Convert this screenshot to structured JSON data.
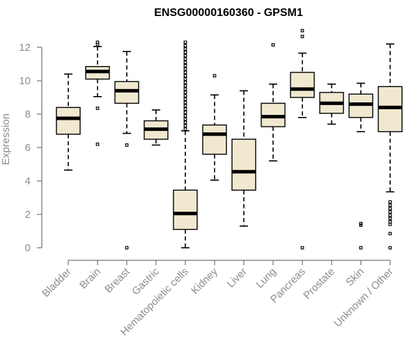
{
  "chart_data": {
    "type": "box",
    "title": "ENSG00000160360 - GPSM1",
    "xlabel": "",
    "ylabel": "Expression",
    "ylim": [
      0,
      12.4
    ],
    "yticks": [
      0,
      2,
      4,
      6,
      8,
      10,
      12
    ],
    "grid": false,
    "colors": {
      "box_fill": "#f0e8cf",
      "stroke": "#000000",
      "axis": "#8c8c8c"
    },
    "categories": [
      "Bladder",
      "Brain",
      "Breast",
      "Gastric",
      "Hematopoietic cells",
      "Kidney",
      "Liver",
      "Lung",
      "Pancreas",
      "Prostate",
      "Skin",
      "Unknown / Other"
    ],
    "boxes": [
      {
        "name": "Bladder",
        "whisker_low": 4.65,
        "q1": 6.8,
        "median": 7.75,
        "q3": 8.4,
        "whisker_high": 10.4,
        "outliers": []
      },
      {
        "name": "Brain",
        "whisker_low": 9.05,
        "q1": 10.1,
        "median": 10.55,
        "q3": 10.85,
        "whisker_high": 12.05,
        "outliers": [
          12.15,
          12.3,
          8.35,
          6.2
        ]
      },
      {
        "name": "Breast",
        "whisker_low": 6.85,
        "q1": 8.65,
        "median": 9.4,
        "q3": 9.95,
        "whisker_high": 11.75,
        "outliers": [
          6.15,
          0.0
        ]
      },
      {
        "name": "Gastric",
        "whisker_low": 6.15,
        "q1": 6.5,
        "median": 7.1,
        "q3": 7.6,
        "whisker_high": 8.25,
        "outliers": []
      },
      {
        "name": "Hematopoietic cells",
        "whisker_low": 0.0,
        "q1": 1.1,
        "median": 2.05,
        "q3": 3.45,
        "whisker_high": 7.0,
        "outliers": [
          7.1,
          7.3,
          7.5,
          7.7,
          7.9,
          8.1,
          8.3,
          8.5,
          8.7,
          8.9,
          9.1,
          9.3,
          9.5,
          9.7,
          9.9,
          10.1,
          10.3,
          10.5,
          10.7,
          10.9,
          11.1,
          11.3,
          11.5,
          11.7,
          11.9,
          12.1,
          12.3
        ]
      },
      {
        "name": "Kidney",
        "whisker_low": 4.05,
        "q1": 5.6,
        "median": 6.8,
        "q3": 7.35,
        "whisker_high": 9.15,
        "outliers": [
          10.3
        ]
      },
      {
        "name": "Liver",
        "whisker_low": 1.3,
        "q1": 3.45,
        "median": 4.55,
        "q3": 6.5,
        "whisker_high": 9.4,
        "outliers": []
      },
      {
        "name": "Lung",
        "whisker_low": 5.2,
        "q1": 7.25,
        "median": 7.85,
        "q3": 8.65,
        "whisker_high": 9.8,
        "outliers": [
          12.15
        ]
      },
      {
        "name": "Pancreas",
        "whisker_low": 7.8,
        "q1": 9.0,
        "median": 9.5,
        "q3": 10.5,
        "whisker_high": 11.65,
        "outliers": [
          12.65,
          13.0,
          0.0
        ]
      },
      {
        "name": "Prostate",
        "whisker_low": 7.4,
        "q1": 8.05,
        "median": 8.65,
        "q3": 9.3,
        "whisker_high": 9.8,
        "outliers": []
      },
      {
        "name": "Skin",
        "whisker_low": 6.95,
        "q1": 7.8,
        "median": 8.6,
        "q3": 9.2,
        "whisker_high": 9.85,
        "outliers": [
          1.35,
          1.45,
          0.0
        ]
      },
      {
        "name": "Unknown / Other",
        "whisker_low": 3.35,
        "q1": 6.95,
        "median": 8.4,
        "q3": 9.65,
        "whisker_high": 12.2,
        "outliers": [
          2.75,
          2.55,
          2.35,
          2.15,
          1.95,
          1.75,
          1.55,
          1.4,
          0.85,
          0.0
        ]
      }
    ]
  }
}
